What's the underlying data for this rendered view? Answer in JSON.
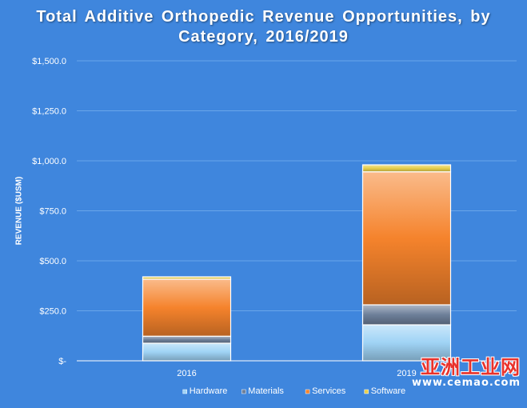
{
  "chart_data": {
    "type": "bar",
    "stacked": true,
    "title": "Total Additive Orthopedic Revenue Opportunities, by Category, 2016/2019",
    "xlabel": "",
    "ylabel": "REVENUE ($USM)",
    "categories": [
      "2016",
      "2019"
    ],
    "ylim": [
      0,
      1500
    ],
    "yticks": [
      0,
      250,
      500,
      750,
      1000,
      1250,
      1500
    ],
    "ytick_labels": [
      "$-",
      "$250.0",
      "$500.0",
      "$750.0",
      "$1,000.0",
      "$1,250.0",
      "$1,500.0"
    ],
    "grid": true,
    "legend_position": "bottom",
    "series": [
      {
        "name": "Hardware",
        "values": [
          88,
          180
        ],
        "color": "#9fd3f5"
      },
      {
        "name": "Materials",
        "values": [
          35,
          100
        ],
        "color": "#6d7f99"
      },
      {
        "name": "Services",
        "values": [
          285,
          665
        ],
        "color": "#f5832c"
      },
      {
        "name": "Software",
        "values": [
          12,
          35
        ],
        "color": "#e8cf4c"
      }
    ]
  },
  "watermark": {
    "top": "亚洲工业网",
    "bottom": "www.cemao.com"
  }
}
